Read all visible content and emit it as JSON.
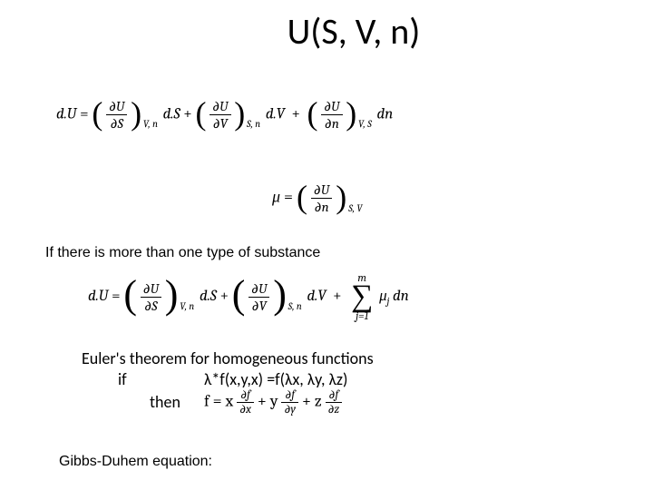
{
  "title": "U(S, V, n)",
  "eq1": {
    "lhs": "d.U",
    "term1": {
      "num": "∂U",
      "den": "∂S",
      "sub": "V, n",
      "diff": "d.S"
    },
    "term2": {
      "num": "∂U",
      "den": "∂V",
      "sub": "S, n",
      "diff": "d.V"
    },
    "term3": {
      "num": "∂U",
      "den": "∂n",
      "sub": "V, S",
      "diff": "dn"
    }
  },
  "eq2": {
    "lhs": "μ",
    "num": "∂U",
    "den": "∂n",
    "sub": "S, V"
  },
  "subtext1": "If there is more than one type of substance",
  "eq3": {
    "lhs": "d.U",
    "term1": {
      "num": "∂U",
      "den": "∂S",
      "sub": "V, n",
      "diff": "d.S"
    },
    "term2": {
      "num": "∂U",
      "den": "∂V",
      "sub": "S, n",
      "diff": "d.V"
    },
    "sum": {
      "top": "m",
      "bot": "j=1",
      "body_mu": "μ",
      "body_sub": "j",
      "body_diff": " dn"
    }
  },
  "euler": {
    "line1": "Euler's theorem for homogeneous functions",
    "if_label": "if",
    "if_body": "λ*f(x,y,x) =f(λx, λy, λz)",
    "then_label": "then ",
    "then_prefix": "f = x",
    "t1": {
      "num": "∂f",
      "den": "∂x"
    },
    "plus_y": "  + y ",
    "t2": {
      "num": "∂f",
      "den": "∂y"
    },
    "plus_z": " + z ",
    "t3": {
      "num": "∂f",
      "den": "∂z"
    }
  },
  "subtext2": "Gibbs-Duhem equation:"
}
